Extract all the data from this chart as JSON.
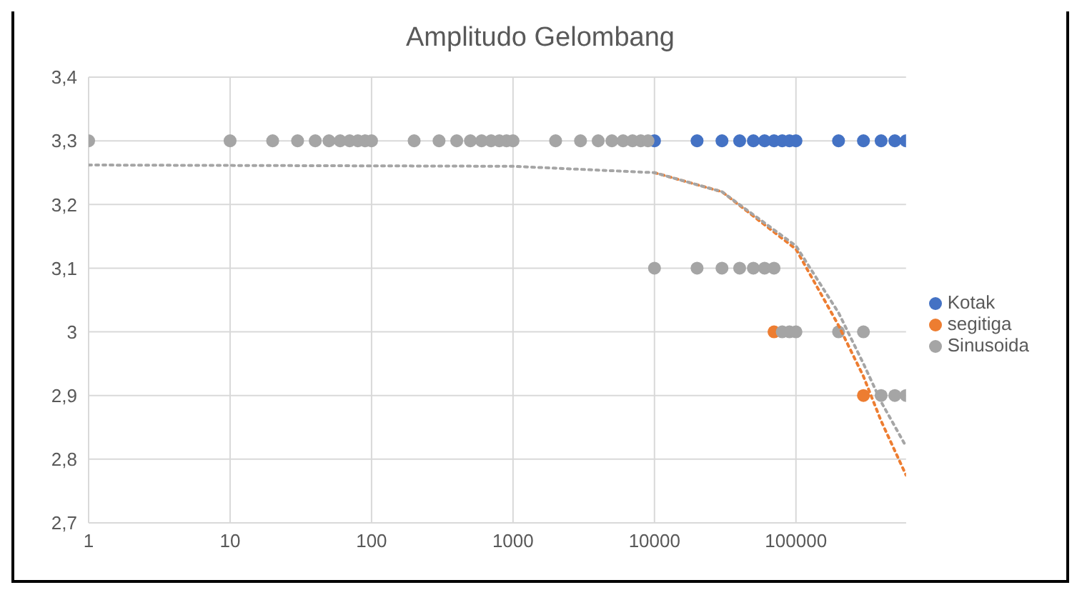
{
  "chart_data": {
    "type": "scatter",
    "title": "Amplitudo Gelombang",
    "log": "x",
    "grid": true,
    "legend": "right",
    "marker": "circle",
    "xlim": [
      1,
      600000
    ],
    "xticks": [
      1,
      10,
      100,
      1000,
      10000,
      100000
    ],
    "ylim": [
      2.7,
      3.4
    ],
    "yticks": [
      {
        "value": 2.7,
        "label": "2,7"
      },
      {
        "value": 2.8,
        "label": "2,8"
      },
      {
        "value": 2.9,
        "label": "2,9"
      },
      3,
      {
        "value": 3.1,
        "label": "3,1"
      },
      {
        "value": 3.2,
        "label": "3,2"
      },
      {
        "value": 3.3,
        "label": "3,3"
      },
      {
        "value": 3.4,
        "label": "3,4"
      }
    ],
    "series": [
      {
        "name": "Kotak",
        "color": "#4472c4",
        "x": [
          10000,
          20000,
          30000,
          40000,
          50000,
          60000,
          70000,
          80000,
          90000,
          100000,
          200000,
          300000,
          400000,
          500000,
          600000
        ],
        "values": [
          3.3,
          3.3,
          3.3,
          3.3,
          3.3,
          3.3,
          3.3,
          3.3,
          3.3,
          3.3,
          3.3,
          3.3,
          3.3,
          3.3,
          3.3
        ]
      },
      {
        "name": "segitiga",
        "color": "#ed7d31",
        "x": [
          70000,
          300000
        ],
        "values": [
          3.0,
          2.9
        ]
      },
      {
        "name": "Sinusoida",
        "color": "#a5a5a5",
        "x": [
          1,
          10,
          20,
          30,
          40,
          50,
          60,
          70,
          80,
          90,
          100,
          200,
          300,
          400,
          500,
          600,
          700,
          800,
          900,
          1000,
          2000,
          3000,
          4000,
          5000,
          6000,
          7000,
          8000,
          9000,
          10000,
          20000,
          30000,
          40000,
          50000,
          60000,
          70000,
          80000,
          90000,
          100000,
          200000,
          300000,
          400000,
          500000,
          600000
        ],
        "values": [
          3.3,
          3.3,
          3.3,
          3.3,
          3.3,
          3.3,
          3.3,
          3.3,
          3.3,
          3.3,
          3.3,
          3.3,
          3.3,
          3.3,
          3.3,
          3.3,
          3.3,
          3.3,
          3.3,
          3.3,
          3.3,
          3.3,
          3.3,
          3.3,
          3.3,
          3.3,
          3.3,
          3.3,
          3.1,
          3.1,
          3.1,
          3.1,
          3.1,
          3.1,
          3.1,
          3.0,
          3.0,
          3.0,
          3.0,
          3.0,
          2.9,
          2.9,
          2.9
        ]
      },
      {
        "type": "line",
        "line_style": "dotted",
        "marker": "none",
        "color": "#ed7d31",
        "x": [
          10000,
          30000,
          100000,
          200000,
          300000,
          400000,
          600000
        ],
        "values": [
          3.25,
          3.22,
          3.13,
          3.01,
          2.93,
          2.86,
          2.775
        ]
      },
      {
        "type": "line",
        "line_style": "dotted",
        "marker": "none",
        "color": "#a5a5a5",
        "x": [
          1,
          1000,
          10000,
          30000,
          100000,
          200000,
          300000,
          400000,
          600000
        ],
        "values": [
          3.262,
          3.26,
          3.25,
          3.22,
          3.135,
          3.03,
          2.95,
          2.89,
          2.82
        ]
      }
    ]
  }
}
